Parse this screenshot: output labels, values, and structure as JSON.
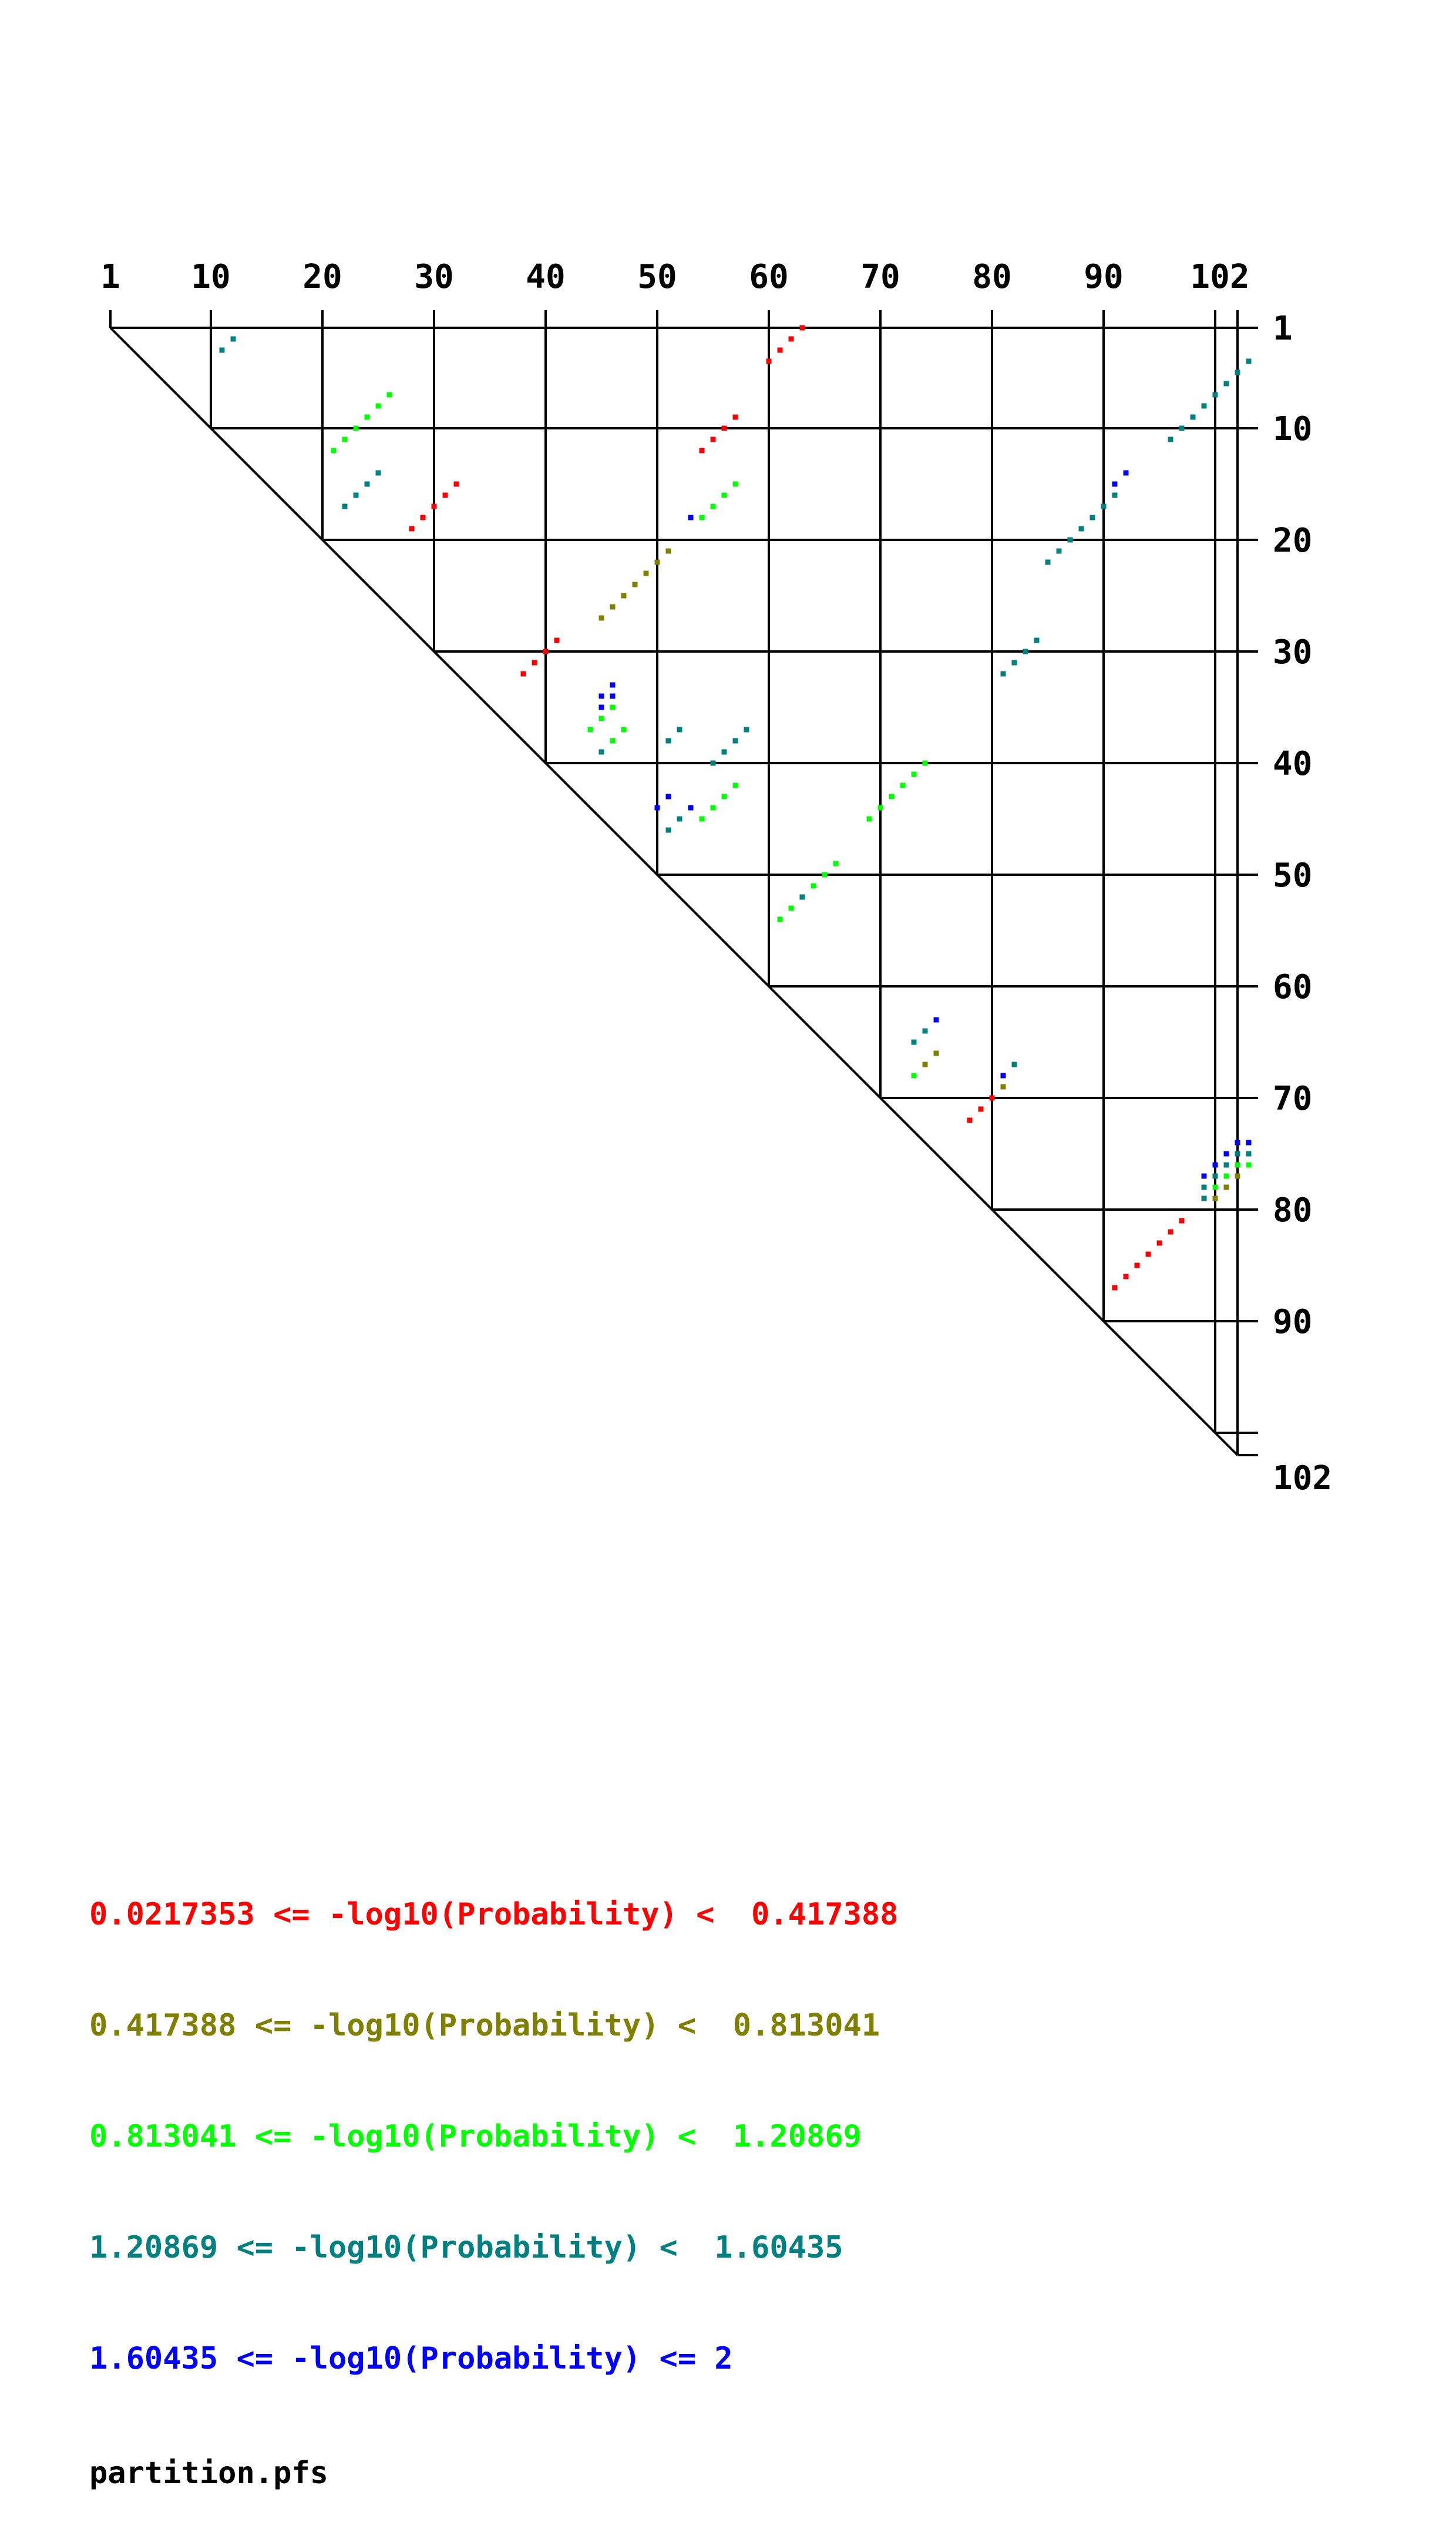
{
  "chart_data": {
    "type": "heatmap",
    "subtype": "rna-dot-plot-triangle",
    "sequence_length": 102,
    "x_tick_labels": [
      "1",
      "10",
      "20",
      "30",
      "40",
      "50",
      "60",
      "70",
      "80",
      "90",
      "102"
    ],
    "y_tick_labels": [
      "1",
      "10",
      "20",
      "30",
      "40",
      "50",
      "60",
      "70",
      "80",
      "90",
      "102"
    ],
    "grid_positions": [
      1,
      10,
      20,
      30,
      40,
      50,
      60,
      70,
      80,
      90,
      100,
      102
    ],
    "bins": [
      {
        "label": "0.0217353 <= -log10(Probability) <  0.417388",
        "min": 0.0217353,
        "max": 0.417388,
        "color": "#ff0000"
      },
      {
        "label": "0.417388 <= -log10(Probability) <  0.813041",
        "min": 0.417388,
        "max": 0.813041,
        "color": "#808000"
      },
      {
        "label": "0.813041 <= -log10(Probability) <  1.20869",
        "min": 0.813041,
        "max": 1.20869,
        "color": "#00ff00"
      },
      {
        "label": "1.20869 <= -log10(Probability) <  1.60435",
        "min": 1.20869,
        "max": 1.60435,
        "color": "#008080"
      },
      {
        "label": "1.60435 <= -log10(Probability) <= 2",
        "min": 1.60435,
        "max": 2,
        "color": "#0000ff"
      }
    ],
    "pairs": [
      {
        "i": 2,
        "j": 12,
        "bin": 3
      },
      {
        "i": 3,
        "j": 11,
        "bin": 3
      },
      {
        "i": 1,
        "j": 63,
        "bin": 0
      },
      {
        "i": 2,
        "j": 62,
        "bin": 0
      },
      {
        "i": 3,
        "j": 61,
        "bin": 0
      },
      {
        "i": 4,
        "j": 60,
        "bin": 0
      },
      {
        "i": 7,
        "j": 26,
        "bin": 2
      },
      {
        "i": 8,
        "j": 25,
        "bin": 2
      },
      {
        "i": 9,
        "j": 24,
        "bin": 2
      },
      {
        "i": 10,
        "j": 23,
        "bin": 2
      },
      {
        "i": 11,
        "j": 22,
        "bin": 2
      },
      {
        "i": 12,
        "j": 21,
        "bin": 2
      },
      {
        "i": 14,
        "j": 25,
        "bin": 3
      },
      {
        "i": 15,
        "j": 24,
        "bin": 3
      },
      {
        "i": 16,
        "j": 23,
        "bin": 3
      },
      {
        "i": 17,
        "j": 22,
        "bin": 3
      },
      {
        "i": 15,
        "j": 32,
        "bin": 0
      },
      {
        "i": 16,
        "j": 31,
        "bin": 0
      },
      {
        "i": 17,
        "j": 30,
        "bin": 0
      },
      {
        "i": 18,
        "j": 29,
        "bin": 0
      },
      {
        "i": 19,
        "j": 28,
        "bin": 0
      },
      {
        "i": 9,
        "j": 57,
        "bin": 0
      },
      {
        "i": 10,
        "j": 56,
        "bin": 0
      },
      {
        "i": 11,
        "j": 55,
        "bin": 0
      },
      {
        "i": 12,
        "j": 54,
        "bin": 0
      },
      {
        "i": 15,
        "j": 57,
        "bin": 2
      },
      {
        "i": 16,
        "j": 56,
        "bin": 2
      },
      {
        "i": 17,
        "j": 55,
        "bin": 2
      },
      {
        "i": 18,
        "j": 54,
        "bin": 2
      },
      {
        "i": 18,
        "j": 53,
        "bin": 4
      },
      {
        "i": 21,
        "j": 51,
        "bin": 1
      },
      {
        "i": 22,
        "j": 50,
        "bin": 1
      },
      {
        "i": 23,
        "j": 49,
        "bin": 1
      },
      {
        "i": 24,
        "j": 48,
        "bin": 1
      },
      {
        "i": 25,
        "j": 47,
        "bin": 1
      },
      {
        "i": 26,
        "j": 46,
        "bin": 1
      },
      {
        "i": 27,
        "j": 45,
        "bin": 1
      },
      {
        "i": 29,
        "j": 41,
        "bin": 0
      },
      {
        "i": 30,
        "j": 40,
        "bin": 0
      },
      {
        "i": 31,
        "j": 39,
        "bin": 0
      },
      {
        "i": 32,
        "j": 38,
        "bin": 0
      },
      {
        "i": 33,
        "j": 46,
        "bin": 4
      },
      {
        "i": 34,
        "j": 46,
        "bin": 4
      },
      {
        "i": 34,
        "j": 45,
        "bin": 4
      },
      {
        "i": 35,
        "j": 45,
        "bin": 4
      },
      {
        "i": 35,
        "j": 46,
        "bin": 2
      },
      {
        "i": 36,
        "j": 45,
        "bin": 2
      },
      {
        "i": 37,
        "j": 44,
        "bin": 2
      },
      {
        "i": 37,
        "j": 47,
        "bin": 2
      },
      {
        "i": 38,
        "j": 46,
        "bin": 2
      },
      {
        "i": 39,
        "j": 45,
        "bin": 3
      },
      {
        "i": 37,
        "j": 52,
        "bin": 3
      },
      {
        "i": 38,
        "j": 51,
        "bin": 3
      },
      {
        "i": 37,
        "j": 58,
        "bin": 3
      },
      {
        "i": 38,
        "j": 57,
        "bin": 3
      },
      {
        "i": 39,
        "j": 56,
        "bin": 3
      },
      {
        "i": 40,
        "j": 55,
        "bin": 3
      },
      {
        "i": 42,
        "j": 57,
        "bin": 2
      },
      {
        "i": 43,
        "j": 56,
        "bin": 2
      },
      {
        "i": 44,
        "j": 55,
        "bin": 2
      },
      {
        "i": 45,
        "j": 54,
        "bin": 2
      },
      {
        "i": 44,
        "j": 53,
        "bin": 4
      },
      {
        "i": 43,
        "j": 51,
        "bin": 4
      },
      {
        "i": 44,
        "j": 50,
        "bin": 4
      },
      {
        "i": 45,
        "j": 52,
        "bin": 3
      },
      {
        "i": 46,
        "j": 51,
        "bin": 3
      },
      {
        "i": 40,
        "j": 74,
        "bin": 2
      },
      {
        "i": 41,
        "j": 73,
        "bin": 2
      },
      {
        "i": 42,
        "j": 72,
        "bin": 2
      },
      {
        "i": 43,
        "j": 71,
        "bin": 2
      },
      {
        "i": 44,
        "j": 70,
        "bin": 2
      },
      {
        "i": 45,
        "j": 69,
        "bin": 2
      },
      {
        "i": 49,
        "j": 66,
        "bin": 2
      },
      {
        "i": 50,
        "j": 65,
        "bin": 2
      },
      {
        "i": 51,
        "j": 64,
        "bin": 2
      },
      {
        "i": 52,
        "j": 63,
        "bin": 3
      },
      {
        "i": 53,
        "j": 62,
        "bin": 2
      },
      {
        "i": 54,
        "j": 61,
        "bin": 2
      },
      {
        "i": 14,
        "j": 92,
        "bin": 4
      },
      {
        "i": 15,
        "j": 91,
        "bin": 4
      },
      {
        "i": 16,
        "j": 91,
        "bin": 3
      },
      {
        "i": 17,
        "j": 90,
        "bin": 3
      },
      {
        "i": 18,
        "j": 89,
        "bin": 3
      },
      {
        "i": 19,
        "j": 88,
        "bin": 3
      },
      {
        "i": 20,
        "j": 87,
        "bin": 3
      },
      {
        "i": 21,
        "j": 86,
        "bin": 3
      },
      {
        "i": 22,
        "j": 85,
        "bin": 3
      },
      {
        "i": 29,
        "j": 84,
        "bin": 3
      },
      {
        "i": 30,
        "j": 83,
        "bin": 3
      },
      {
        "i": 31,
        "j": 82,
        "bin": 3
      },
      {
        "i": 32,
        "j": 81,
        "bin": 3
      },
      {
        "i": 4,
        "j": 103,
        "bin": 3
      },
      {
        "i": 5,
        "j": 102,
        "bin": 3
      },
      {
        "i": 6,
        "j": 101,
        "bin": 3
      },
      {
        "i": 7,
        "j": 100,
        "bin": 3
      },
      {
        "i": 8,
        "j": 99,
        "bin": 3
      },
      {
        "i": 9,
        "j": 98,
        "bin": 3
      },
      {
        "i": 10,
        "j": 97,
        "bin": 3
      },
      {
        "i": 11,
        "j": 96,
        "bin": 3
      },
      {
        "i": 63,
        "j": 75,
        "bin": 4
      },
      {
        "i": 64,
        "j": 74,
        "bin": 3
      },
      {
        "i": 65,
        "j": 73,
        "bin": 3
      },
      {
        "i": 66,
        "j": 75,
        "bin": 1
      },
      {
        "i": 67,
        "j": 74,
        "bin": 1
      },
      {
        "i": 68,
        "j": 73,
        "bin": 2
      },
      {
        "i": 67,
        "j": 82,
        "bin": 3
      },
      {
        "i": 68,
        "j": 81,
        "bin": 4
      },
      {
        "i": 69,
        "j": 81,
        "bin": 1
      },
      {
        "i": 70,
        "j": 80,
        "bin": 0
      },
      {
        "i": 71,
        "j": 79,
        "bin": 0
      },
      {
        "i": 72,
        "j": 78,
        "bin": 0
      },
      {
        "i": 74,
        "j": 103,
        "bin": 4
      },
      {
        "i": 74,
        "j": 102,
        "bin": 4
      },
      {
        "i": 75,
        "j": 101,
        "bin": 4
      },
      {
        "i": 76,
        "j": 100,
        "bin": 4
      },
      {
        "i": 77,
        "j": 99,
        "bin": 4
      },
      {
        "i": 75,
        "j": 103,
        "bin": 3
      },
      {
        "i": 75,
        "j": 102,
        "bin": 3
      },
      {
        "i": 76,
        "j": 101,
        "bin": 3
      },
      {
        "i": 77,
        "j": 100,
        "bin": 3
      },
      {
        "i": 78,
        "j": 99,
        "bin": 3
      },
      {
        "i": 79,
        "j": 99,
        "bin": 3
      },
      {
        "i": 76,
        "j": 103,
        "bin": 2
      },
      {
        "i": 76,
        "j": 102,
        "bin": 2
      },
      {
        "i": 77,
        "j": 101,
        "bin": 2
      },
      {
        "i": 78,
        "j": 100,
        "bin": 2
      },
      {
        "i": 77,
        "j": 102,
        "bin": 1
      },
      {
        "i": 78,
        "j": 101,
        "bin": 1
      },
      {
        "i": 79,
        "j": 100,
        "bin": 1
      },
      {
        "i": 81,
        "j": 97,
        "bin": 0
      },
      {
        "i": 82,
        "j": 96,
        "bin": 0
      },
      {
        "i": 83,
        "j": 95,
        "bin": 0
      },
      {
        "i": 84,
        "j": 94,
        "bin": 0
      },
      {
        "i": 85,
        "j": 93,
        "bin": 0
      },
      {
        "i": 86,
        "j": 92,
        "bin": 0
      },
      {
        "i": 87,
        "j": 91,
        "bin": 0
      }
    ]
  },
  "legend": {
    "lines": [
      {
        "text": "0.0217353 <= -log10(Probability) <  0.417388",
        "color": "#ff0000"
      },
      {
        "text": "0.417388 <= -log10(Probability) <  0.813041",
        "color": "#808000"
      },
      {
        "text": "0.813041 <= -log10(Probability) <  1.20869",
        "color": "#00ff00"
      },
      {
        "text": "1.20869 <= -log10(Probability) <  1.60435",
        "color": "#008080"
      },
      {
        "text": "1.60435 <= -log10(Probability) <= 2",
        "color": "#0000ff"
      }
    ],
    "filename": "partition.pfs"
  }
}
